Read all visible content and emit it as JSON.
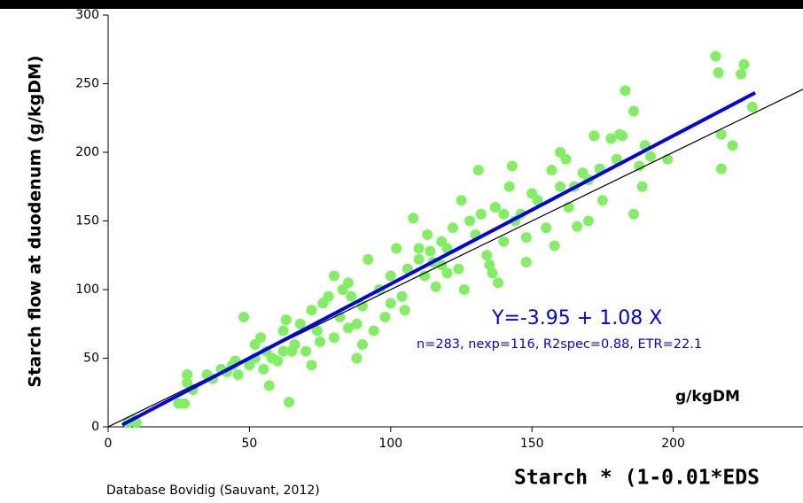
{
  "chart_data": {
    "type": "scatter",
    "y_label": "Starch flow at duodenum (g/kgDM)",
    "x_label": "Starch * (1-0.01*EDS",
    "unit_label": "g/kgDM",
    "equation": "Y=-3.95 + 1.08 X",
    "stats": "n=283, nexp=116, R2spec=0.88, ETR=22.1",
    "source": "Database Bovidig (Sauvant, 2012)",
    "xlim": [
      0,
      250
    ],
    "ylim": [
      0,
      300
    ],
    "xticks": [
      0,
      50,
      100,
      150,
      200,
      250
    ],
    "yticks": [
      0,
      50,
      100,
      150,
      200,
      250,
      300
    ],
    "fit": {
      "intercept": -3.95,
      "slope": 1.08,
      "color": "#0000ee",
      "x_range": [
        5,
        229
      ]
    },
    "identity_line": {
      "color": "#000000",
      "x_range": [
        0,
        250
      ]
    },
    "series": [
      {
        "color": "#80f060",
        "x": [
          7,
          10,
          9,
          25,
          27,
          28,
          28,
          30,
          35,
          37,
          40,
          42,
          45,
          46,
          48,
          50,
          52,
          52,
          54,
          55,
          56,
          57,
          58,
          60,
          62,
          63,
          64,
          65,
          66,
          68,
          70,
          72,
          72,
          74,
          75,
          76,
          78,
          80,
          80,
          82,
          83,
          85,
          86,
          88,
          88,
          90,
          92,
          94,
          96,
          98,
          100,
          100,
          102,
          104,
          105,
          106,
          108,
          110,
          112,
          113,
          114,
          115,
          116,
          118,
          118,
          120,
          122,
          124,
          125,
          126,
          128,
          130,
          131,
          132,
          134,
          135,
          136,
          137,
          138,
          140,
          140,
          142,
          143,
          144,
          146,
          148,
          150,
          152,
          155,
          157,
          158,
          160,
          162,
          163,
          165,
          166,
          168,
          170,
          172,
          174,
          175,
          178,
          180,
          181,
          183,
          186,
          188,
          189,
          190,
          192,
          198,
          215,
          216,
          217,
          217,
          225,
          224,
          228,
          221,
          186,
          182,
          170,
          160,
          148,
          120,
          110,
          90,
          85,
          62,
          44
        ],
        "values": [
          3,
          3,
          5,
          17,
          17,
          38,
          32,
          27,
          38,
          35,
          42,
          40,
          48,
          38,
          80,
          45,
          50,
          60,
          65,
          42,
          55,
          30,
          50,
          48,
          70,
          78,
          18,
          55,
          60,
          75,
          55,
          45,
          85,
          70,
          62,
          90,
          95,
          65,
          110,
          80,
          100,
          72,
          95,
          50,
          75,
          88,
          122,
          70,
          100,
          80,
          110,
          90,
          130,
          95,
          85,
          115,
          152,
          122,
          110,
          140,
          128,
          120,
          102,
          135,
          118,
          130,
          145,
          115,
          165,
          100,
          150,
          140,
          187,
          155,
          125,
          118,
          112,
          160,
          105,
          135,
          155,
          175,
          190,
          150,
          155,
          138,
          170,
          165,
          145,
          187,
          132,
          175,
          195,
          160,
          175,
          146,
          185,
          180,
          212,
          188,
          165,
          210,
          195,
          213,
          245,
          155,
          190,
          175,
          205,
          197,
          195,
          270,
          258,
          213,
          188,
          264,
          257,
          233,
          205,
          230,
          212,
          150,
          200,
          120,
          112,
          130,
          60,
          105,
          55,
          45
        ]
      }
    ]
  }
}
